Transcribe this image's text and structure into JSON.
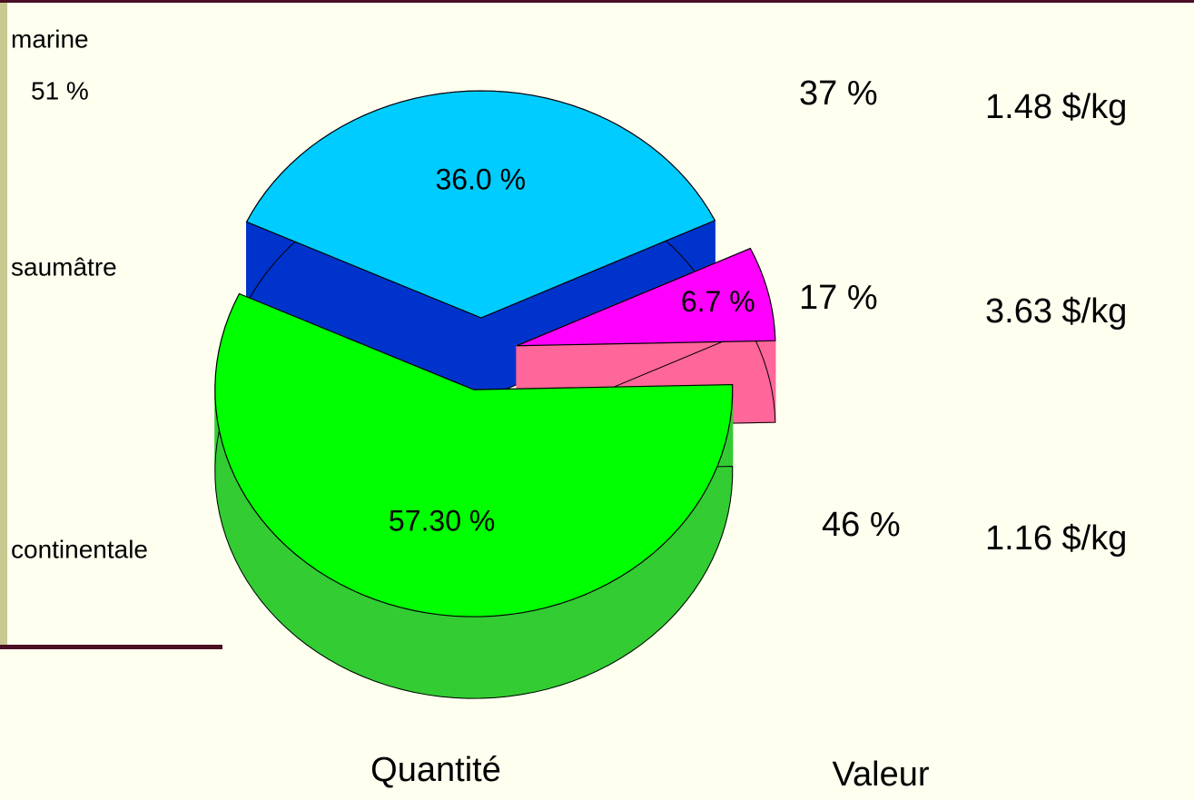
{
  "chart_data": {
    "type": "pie",
    "categories": [
      "marine",
      "saumâtre",
      "continentale"
    ],
    "values": [
      36.0,
      6.7,
      57.3
    ],
    "value_labels": [
      "36.0 %",
      "6.7 %",
      "57.30 %"
    ],
    "colors": [
      "#00ccff",
      "#ff00ff",
      "#00ff00"
    ],
    "side_colors": [
      "#0033cc",
      "#ff6699",
      "#33cc33"
    ],
    "annotations": [
      "51 %"
    ],
    "value_shares": [
      37,
      17,
      46
    ],
    "value_share_labels": [
      "37 %",
      "17 %",
      "46 %"
    ],
    "prices": [
      1.48,
      3.63,
      1.16
    ],
    "price_labels": [
      "1.48 $/kg",
      "3.63 $/kg",
      "1.16 $/kg"
    ],
    "column_titles": [
      "Quantité",
      "Valeur"
    ]
  }
}
